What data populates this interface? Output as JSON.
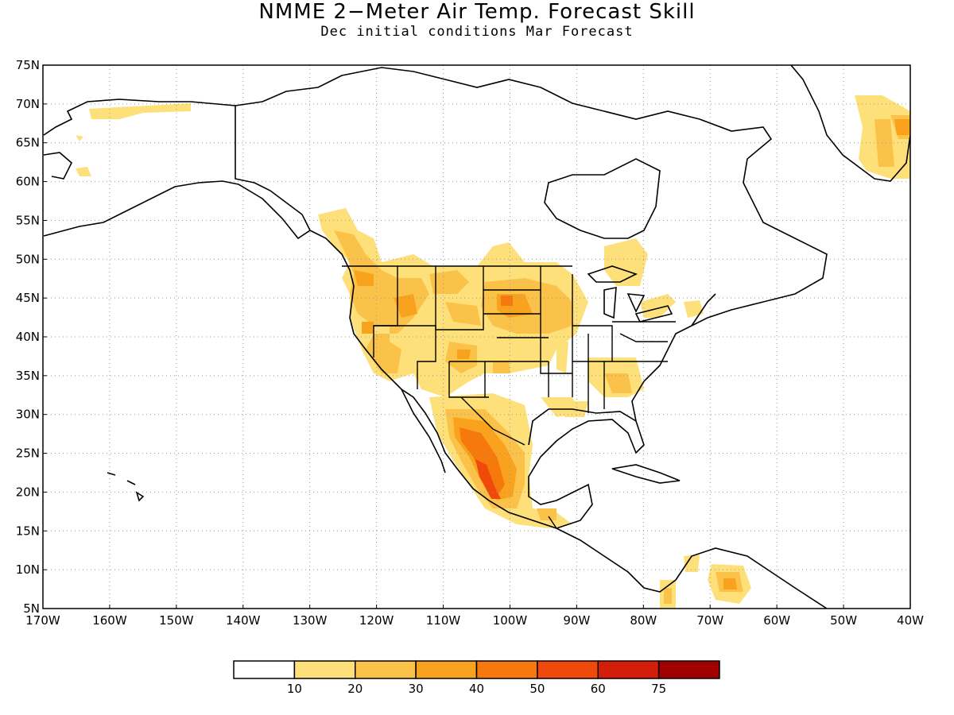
{
  "header": {
    "title": "NMME 2−Meter Air Temp. Forecast Skill",
    "subtitle": "Dec initial conditions  Mar Forecast"
  },
  "map": {
    "lat_labels": [
      "75N",
      "70N",
      "65N",
      "60N",
      "55N",
      "50N",
      "45N",
      "40N",
      "35N",
      "30N",
      "25N",
      "20N",
      "15N",
      "10N",
      "5N"
    ],
    "lon_labels": [
      "170W",
      "160W",
      "150W",
      "140W",
      "130W",
      "120W",
      "110W",
      "100W",
      "90W",
      "80W",
      "70W",
      "60W",
      "50W",
      "40W"
    ],
    "lat_range": [
      5,
      75
    ],
    "lon_range": [
      -170,
      -40
    ],
    "grid": "dotted"
  },
  "colorbar": {
    "levels": [
      "10",
      "20",
      "30",
      "40",
      "50",
      "60",
      "75"
    ],
    "colors": [
      "#ffffff",
      "#fde07a",
      "#fbc24a",
      "#f9a21d",
      "#f5790c",
      "#f04a0a",
      "#d41e0a",
      "#a00000"
    ]
  }
}
